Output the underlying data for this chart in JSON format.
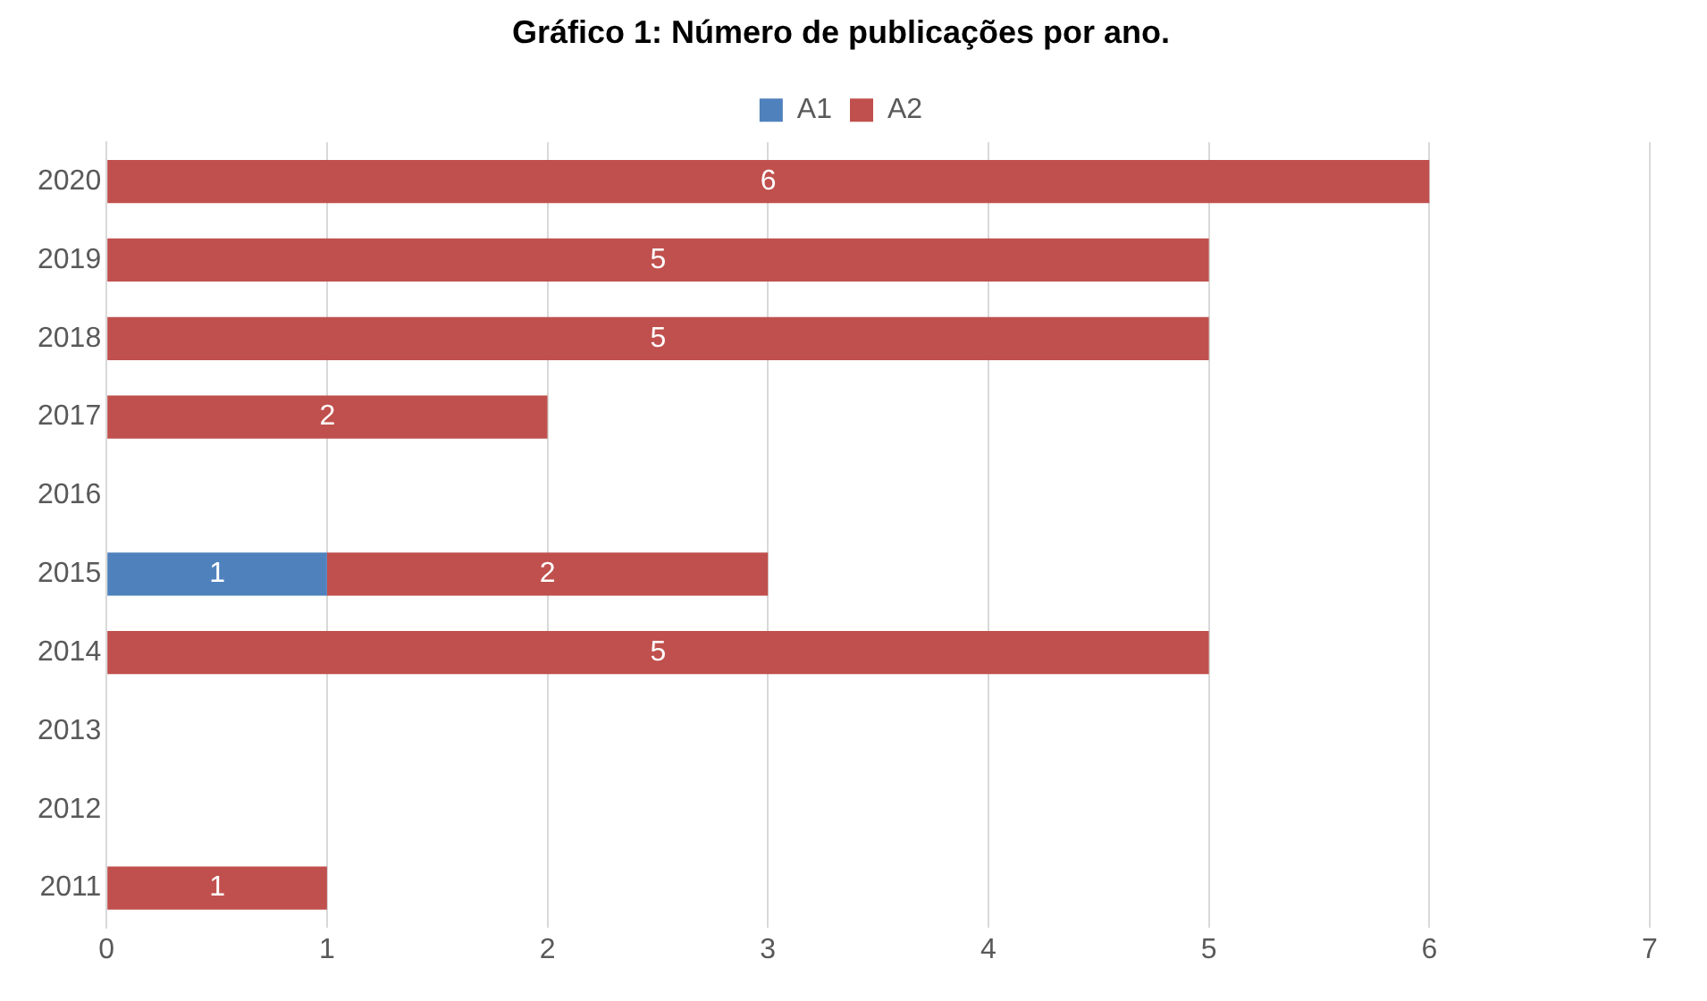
{
  "chart_data": {
    "type": "bar",
    "orientation": "horizontal",
    "stacked": true,
    "title": "Gráfico 1: Número de publicações por ano.",
    "categories": [
      "2020",
      "2019",
      "2018",
      "2017",
      "2016",
      "2015",
      "2014",
      "2013",
      "2012",
      "2011"
    ],
    "series": [
      {
        "name": "A1",
        "color": "#4f81bd",
        "values": [
          null,
          null,
          null,
          null,
          null,
          1,
          null,
          null,
          null,
          null
        ]
      },
      {
        "name": "A2",
        "color": "#c0504d",
        "values": [
          6,
          5,
          5,
          2,
          null,
          2,
          5,
          null,
          null,
          1
        ]
      }
    ],
    "xlim": [
      0,
      7
    ],
    "xticks": [
      0,
      1,
      2,
      3,
      4,
      5,
      6,
      7
    ],
    "grid": "x",
    "legend": "top",
    "data_labels": true
  }
}
